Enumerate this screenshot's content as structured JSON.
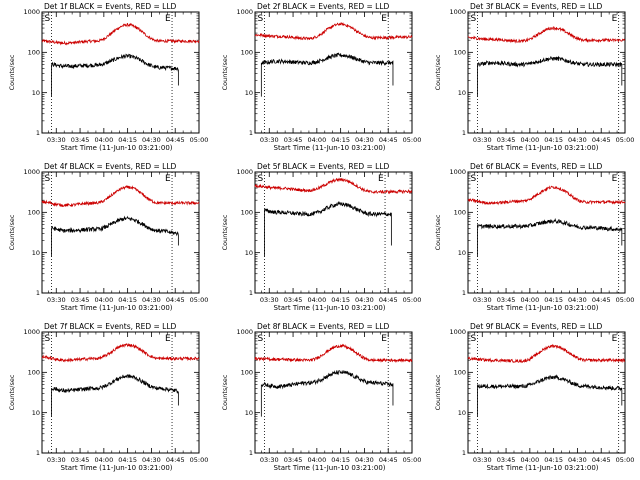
{
  "chart_data": [
    {
      "type": "line",
      "title": "Det 1f BLACK = Events, RED = LLD",
      "xlabel": "Start Time (11-Jun-10 03:21:00)",
      "ylabel": "Counts/sec",
      "x_ticks": [
        "03:30",
        "03:45",
        "04:00",
        "04:15",
        "04:30",
        "04:45",
        "05:00"
      ],
      "y_ticks": [
        "1",
        "10",
        "100",
        "1000"
      ],
      "yscale": "log",
      "ylim": [
        1,
        1000
      ],
      "markers": [
        "S",
        "E"
      ],
      "marker_times": [
        "03:27",
        "04:43"
      ],
      "series": [
        {
          "color": "#cc0000",
          "start": "03:21",
          "end": "05:00",
          "x": [
            "03:21",
            "03:35",
            "03:55",
            "04:15",
            "04:35",
            "05:00"
          ],
          "values": [
            190,
            170,
            190,
            480,
            190,
            190
          ]
        },
        {
          "color": "#000000",
          "start": "03:27",
          "end": "04:47",
          "x": [
            "03:27",
            "03:35",
            "03:55",
            "04:15",
            "04:35",
            "04:47"
          ],
          "values": [
            50,
            45,
            48,
            80,
            42,
            40
          ]
        }
      ]
    },
    {
      "type": "line",
      "title": "Det 2f BLACK = Events, RED = LLD",
      "xlabel": "Start Time (11-Jun-10 03:21:00)",
      "ylabel": "Counts/sec",
      "x_ticks": [
        "03:30",
        "03:45",
        "04:00",
        "04:15",
        "04:30",
        "04:45",
        "05:00"
      ],
      "y_ticks": [
        "1",
        "10",
        "100",
        "1000"
      ],
      "yscale": "log",
      "ylim": [
        1,
        1000
      ],
      "markers": [
        "S",
        "E"
      ],
      "marker_times": [
        "03:27",
        "04:45"
      ],
      "series": [
        {
          "color": "#cc0000",
          "start": "03:21",
          "end": "05:00",
          "x": [
            "03:21",
            "03:35",
            "03:55",
            "04:15",
            "04:35",
            "05:00"
          ],
          "values": [
            270,
            250,
            220,
            500,
            230,
            240
          ]
        },
        {
          "color": "#000000",
          "start": "03:25",
          "end": "04:48",
          "x": [
            "03:25",
            "03:35",
            "03:55",
            "04:15",
            "04:35",
            "04:48"
          ],
          "values": [
            55,
            60,
            55,
            85,
            55,
            55
          ]
        }
      ]
    },
    {
      "type": "line",
      "title": "Det 3f BLACK = Events, RED = LLD",
      "xlabel": "Start Time (11-Jun-10 03:21:00)",
      "ylabel": "Counts/sec",
      "x_ticks": [
        "03:30",
        "03:45",
        "04:00",
        "04:15",
        "04:30",
        "04:45",
        "05:00"
      ],
      "y_ticks": [
        "1",
        "10",
        "100",
        "1000"
      ],
      "yscale": "log",
      "ylim": [
        1,
        1000
      ],
      "markers": [
        "S",
        "E"
      ],
      "marker_times": [
        "03:27",
        "04:56"
      ],
      "series": [
        {
          "color": "#cc0000",
          "start": "03:21",
          "end": "05:00",
          "x": [
            "03:21",
            "03:35",
            "03:55",
            "04:15",
            "04:35",
            "05:00"
          ],
          "values": [
            230,
            210,
            190,
            400,
            200,
            200
          ]
        },
        {
          "color": "#000000",
          "start": "03:27",
          "end": "04:58",
          "x": [
            "03:27",
            "03:35",
            "03:55",
            "04:15",
            "04:35",
            "04:58"
          ],
          "values": [
            50,
            55,
            50,
            70,
            50,
            50
          ]
        }
      ]
    },
    {
      "type": "line",
      "title": "Det 4f BLACK = Events, RED = LLD",
      "xlabel": "Start Time (11-Jun-10 03:21:00)",
      "ylabel": "Counts/sec",
      "x_ticks": [
        "03:30",
        "03:45",
        "04:00",
        "04:15",
        "04:30",
        "04:45",
        "05:00"
      ],
      "y_ticks": [
        "1",
        "10",
        "100",
        "1000"
      ],
      "yscale": "log",
      "ylim": [
        1,
        1000
      ],
      "markers": [
        "S",
        "E"
      ],
      "marker_times": [
        "03:27",
        "04:43"
      ],
      "series": [
        {
          "color": "#cc0000",
          "start": "03:21",
          "end": "05:00",
          "x": [
            "03:21",
            "03:35",
            "03:55",
            "04:15",
            "04:35",
            "05:00"
          ],
          "values": [
            180,
            150,
            170,
            420,
            170,
            170
          ]
        },
        {
          "color": "#000000",
          "start": "03:27",
          "end": "04:47",
          "x": [
            "03:27",
            "03:35",
            "03:55",
            "04:15",
            "04:35",
            "04:47"
          ],
          "values": [
            40,
            35,
            38,
            70,
            35,
            30
          ]
        }
      ]
    },
    {
      "type": "line",
      "title": "Det 5f BLACK = Events, RED = LLD",
      "xlabel": "Start Time (11-Jun-10 03:21:00)",
      "ylabel": "Counts/sec",
      "x_ticks": [
        "03:30",
        "03:45",
        "04:00",
        "04:15",
        "04:30",
        "04:45",
        "05:00"
      ],
      "y_ticks": [
        "1",
        "10",
        "100",
        "1000"
      ],
      "yscale": "log",
      "ylim": [
        1,
        1000
      ],
      "markers": [
        "S",
        "E"
      ],
      "marker_times": [
        "03:27",
        "04:43"
      ],
      "series": [
        {
          "color": "#cc0000",
          "start": "03:21",
          "end": "05:00",
          "x": [
            "03:21",
            "03:35",
            "03:55",
            "04:15",
            "04:35",
            "05:00"
          ],
          "values": [
            450,
            400,
            350,
            650,
            320,
            330
          ]
        },
        {
          "color": "#000000",
          "start": "03:27",
          "end": "04:47",
          "x": [
            "03:27",
            "03:35",
            "03:55",
            "04:15",
            "04:35",
            "04:47"
          ],
          "values": [
            110,
            100,
            90,
            160,
            90,
            90
          ]
        }
      ]
    },
    {
      "type": "line",
      "title": "Det 6f BLACK = Events, RED = LLD",
      "xlabel": "Start Time (11-Jun-10 03:21:00)",
      "ylabel": "Counts/sec",
      "x_ticks": [
        "03:30",
        "03:45",
        "04:00",
        "04:15",
        "04:30",
        "04:45",
        "05:00"
      ],
      "y_ticks": [
        "1",
        "10",
        "100",
        "1000"
      ],
      "yscale": "log",
      "ylim": [
        1,
        1000
      ],
      "markers": [
        "S",
        "E"
      ],
      "marker_times": [
        "03:27",
        "04:56"
      ],
      "series": [
        {
          "color": "#cc0000",
          "start": "03:21",
          "end": "05:00",
          "x": [
            "03:21",
            "03:35",
            "03:55",
            "04:15",
            "04:35",
            "05:00"
          ],
          "values": [
            200,
            170,
            190,
            420,
            180,
            180
          ]
        },
        {
          "color": "#000000",
          "start": "03:27",
          "end": "04:58",
          "x": [
            "03:27",
            "03:35",
            "03:55",
            "04:15",
            "04:35",
            "04:58"
          ],
          "values": [
            45,
            45,
            45,
            60,
            42,
            38
          ]
        }
      ]
    },
    {
      "type": "line",
      "title": "Det 7f BLACK = Events, RED = LLD",
      "xlabel": "Start Time (11-Jun-10 03:21:00)",
      "ylabel": "Counts/sec",
      "x_ticks": [
        "03:30",
        "03:45",
        "04:00",
        "04:15",
        "04:30",
        "04:45",
        "05:00"
      ],
      "y_ticks": [
        "1",
        "10",
        "100",
        "1000"
      ],
      "yscale": "log",
      "ylim": [
        1,
        1000
      ],
      "markers": [
        "S",
        "E"
      ],
      "marker_times": [
        "03:27",
        "04:43"
      ],
      "series": [
        {
          "color": "#cc0000",
          "start": "03:21",
          "end": "05:00",
          "x": [
            "03:21",
            "03:35",
            "03:55",
            "04:15",
            "04:35",
            "05:00"
          ],
          "values": [
            240,
            200,
            220,
            480,
            220,
            220
          ]
        },
        {
          "color": "#000000",
          "start": "03:27",
          "end": "04:47",
          "x": [
            "03:27",
            "03:35",
            "03:55",
            "04:15",
            "04:35",
            "04:47"
          ],
          "values": [
            40,
            35,
            40,
            80,
            40,
            35
          ]
        }
      ]
    },
    {
      "type": "line",
      "title": "Det 8f BLACK = Events, RED = LLD",
      "xlabel": "Start Time (11-Jun-10 03:21:00)",
      "ylabel": "Counts/sec",
      "x_ticks": [
        "03:30",
        "03:45",
        "04:00",
        "04:15",
        "04:30",
        "04:45",
        "05:00"
      ],
      "y_ticks": [
        "1",
        "10",
        "100",
        "1000"
      ],
      "yscale": "log",
      "ylim": [
        1,
        1000
      ],
      "markers": [
        "S",
        "E"
      ],
      "marker_times": [
        "03:27",
        "04:45"
      ],
      "series": [
        {
          "color": "#cc0000",
          "start": "03:21",
          "end": "05:00",
          "x": [
            "03:21",
            "03:35",
            "03:55",
            "04:15",
            "04:35",
            "05:00"
          ],
          "values": [
            220,
            210,
            200,
            450,
            200,
            200
          ]
        },
        {
          "color": "#000000",
          "start": "03:25",
          "end": "04:48",
          "x": [
            "03:25",
            "03:35",
            "03:55",
            "04:15",
            "04:35",
            "04:48"
          ],
          "values": [
            50,
            45,
            55,
            100,
            55,
            50
          ]
        }
      ]
    },
    {
      "type": "line",
      "title": "Det 9f BLACK = Events, RED = LLD",
      "xlabel": "Start Time (11-Jun-10 03:21:00)",
      "ylabel": "Counts/sec",
      "x_ticks": [
        "03:30",
        "03:45",
        "04:00",
        "04:15",
        "04:30",
        "04:45",
        "05:00"
      ],
      "y_ticks": [
        "1",
        "10",
        "100",
        "1000"
      ],
      "yscale": "log",
      "ylim": [
        1,
        1000
      ],
      "markers": [
        "S",
        "E"
      ],
      "marker_times": [
        "03:27",
        "04:56"
      ],
      "series": [
        {
          "color": "#cc0000",
          "start": "03:21",
          "end": "05:00",
          "x": [
            "03:21",
            "03:35",
            "03:55",
            "04:15",
            "04:35",
            "05:00"
          ],
          "values": [
            220,
            200,
            190,
            450,
            200,
            200
          ]
        },
        {
          "color": "#000000",
          "start": "03:27",
          "end": "04:58",
          "x": [
            "03:27",
            "03:35",
            "03:55",
            "04:15",
            "04:35",
            "04:58"
          ],
          "values": [
            45,
            45,
            45,
            75,
            45,
            40
          ]
        }
      ]
    }
  ]
}
